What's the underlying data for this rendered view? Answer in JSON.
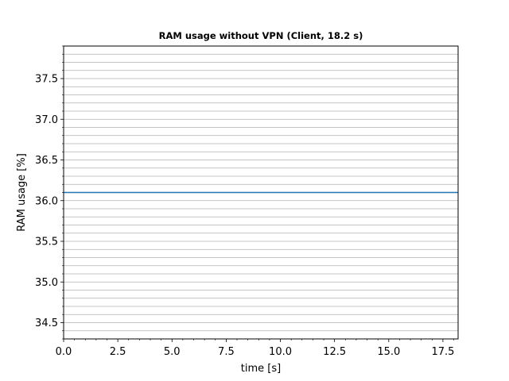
{
  "chart_data": {
    "type": "line",
    "title": "RAM usage without VPN (Client, 18.2 s)",
    "xlabel": "time [s]",
    "ylabel": "RAM usage [%]",
    "xlim": [
      0,
      18.2
    ],
    "ylim": [
      34.3,
      37.9
    ],
    "x_ticks": [
      "0.0",
      "2.5",
      "5.0",
      "7.5",
      "10.0",
      "12.5",
      "15.0",
      "17.5"
    ],
    "y_ticks": [
      "34.5",
      "35.0",
      "35.5",
      "36.0",
      "36.5",
      "37.0",
      "37.5"
    ],
    "grid": "y-minor",
    "series": [
      {
        "color": "#1f77b4",
        "x": [
          0,
          18.2
        ],
        "y": [
          36.1,
          36.1
        ]
      }
    ]
  }
}
